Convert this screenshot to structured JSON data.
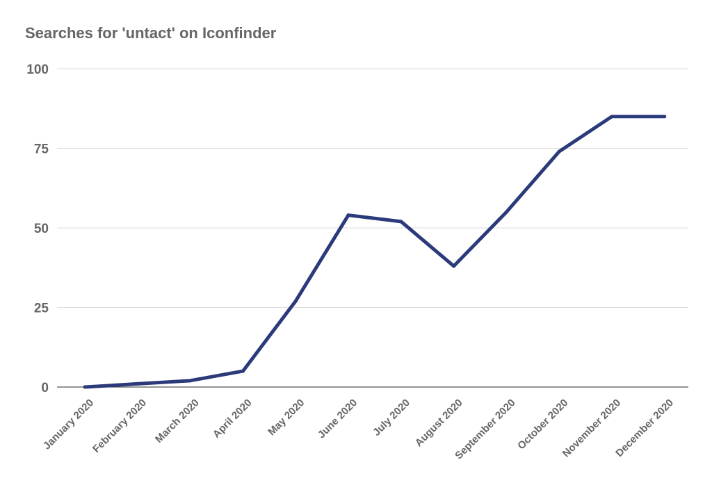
{
  "chart_data": {
    "type": "line",
    "title": "Searches for 'untact' on Iconfinder",
    "xlabel": "",
    "ylabel": "",
    "categories": [
      "January 2020",
      "February 2020",
      "March 2020",
      "April 2020",
      "May 2020",
      "June 2020",
      "July 2020",
      "August 2020",
      "September 2020",
      "October 2020",
      "November 2020",
      "December 2020"
    ],
    "series": [
      {
        "values": [
          0,
          1,
          2,
          5,
          27,
          54,
          52,
          38,
          55,
          74,
          85,
          85
        ],
        "color": "#2b3a7a"
      }
    ],
    "ylim": [
      0,
      100
    ],
    "yticks": [
      0,
      25,
      50,
      75,
      100
    ],
    "grid": true,
    "legend": "none"
  }
}
